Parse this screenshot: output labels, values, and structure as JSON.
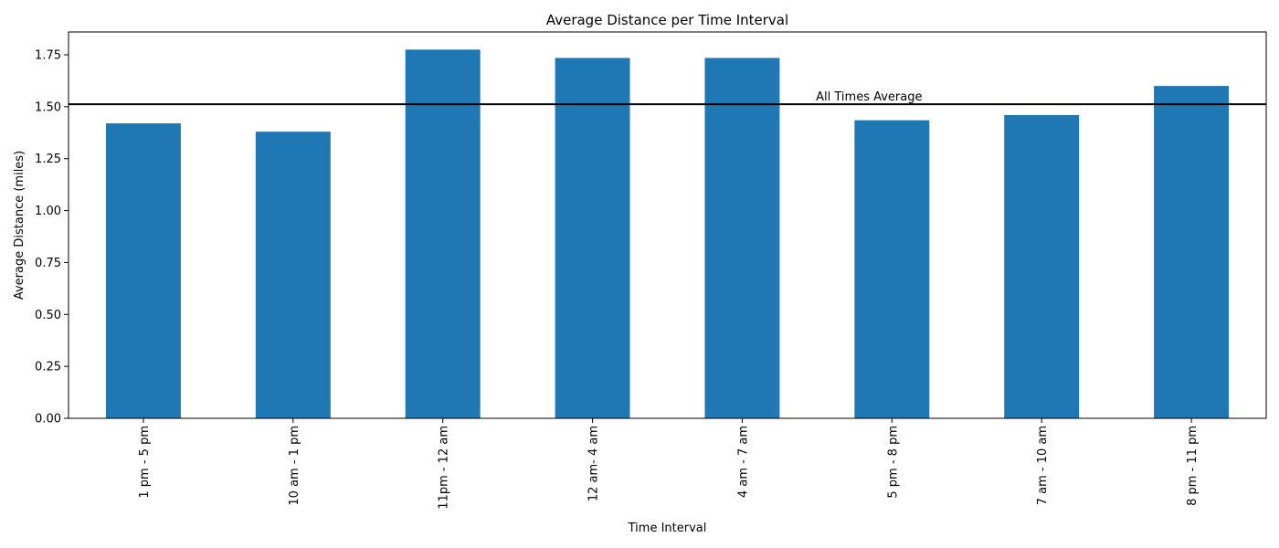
{
  "chart_data": {
    "type": "bar",
    "title": "Average Distance per Time Interval",
    "xlabel": "Time Interval",
    "ylabel": "Average Distance (miles)",
    "categories": [
      "1 pm - 5 pm",
      "10 am - 1 pm",
      "11pm - 12 am",
      "12 am- 4 am",
      "4 am - 7 am",
      "5 pm - 8 pm",
      "7 am - 10 am",
      "8 pm - 11 pm"
    ],
    "values": [
      1.42,
      1.38,
      1.775,
      1.735,
      1.735,
      1.435,
      1.46,
      1.6
    ],
    "ylim": [
      0,
      1.86
    ],
    "yticks": [
      "0.00",
      "0.25",
      "0.50",
      "0.75",
      "1.00",
      "1.25",
      "1.50",
      "1.75"
    ],
    "reference_line": {
      "label": "All Times Average",
      "value": 1.512,
      "color": "#000000"
    },
    "bar_color": "#1f77b4",
    "grid": false,
    "legend": "none"
  }
}
